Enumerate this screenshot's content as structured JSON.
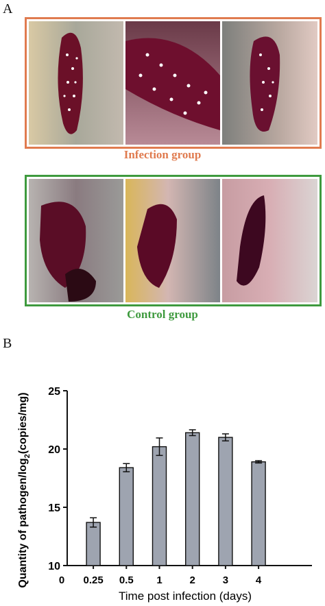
{
  "panel_a": {
    "letter": "A",
    "infection": {
      "caption": "Infection group",
      "color": "#e07b4f"
    },
    "control": {
      "caption": "Control group",
      "color": "#3e9a3e"
    }
  },
  "panel_b": {
    "letter": "B"
  },
  "chart_data": {
    "type": "bar",
    "categories": [
      "0.25",
      "0.5",
      "1",
      "2",
      "3",
      "4"
    ],
    "values": [
      13.7,
      18.4,
      20.2,
      21.4,
      21.0,
      18.9
    ],
    "errors": [
      0.4,
      0.35,
      0.75,
      0.25,
      0.3,
      0.1
    ],
    "x_origin_label": "0",
    "xlabel": "Time post infection (days)",
    "ylabel_prefix": "Quantity of pathogen/log",
    "ylabel_sub": "2",
    "ylabel_suffix": "(copies/mg)",
    "ylim": [
      10,
      25
    ],
    "yticks": [
      10,
      15,
      20,
      25
    ],
    "bar_color": "#9ea4b0",
    "grid": false
  }
}
